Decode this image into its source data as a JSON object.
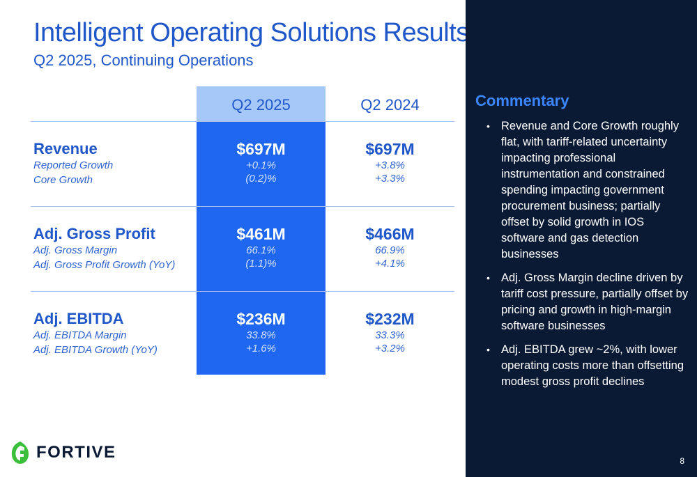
{
  "slide": {
    "title": "Intelligent Operating Solutions Results",
    "subtitle": "Q2 2025, Continuing Operations",
    "page_number": "8"
  },
  "table": {
    "columns": [
      "Q2 2025",
      "Q2 2024"
    ],
    "rows": [
      {
        "label": "Revenue",
        "sublabels": [
          "Reported Growth",
          "Core Growth"
        ],
        "q2_2025": {
          "value": "$697M",
          "subs": [
            "+0.1%",
            "(0.2)%"
          ]
        },
        "q2_2024": {
          "value": "$697M",
          "subs": [
            "+3.8%",
            "+3.3%"
          ]
        }
      },
      {
        "label": "Adj. Gross Profit",
        "sublabels": [
          "Adj. Gross Margin",
          "Adj. Gross Profit Growth (YoY)"
        ],
        "q2_2025": {
          "value": "$461M",
          "subs": [
            "66.1%",
            "(1.1)%"
          ]
        },
        "q2_2024": {
          "value": "$466M",
          "subs": [
            "66.9%",
            "+4.1%"
          ]
        }
      },
      {
        "label": "Adj. EBITDA",
        "sublabels": [
          "Adj. EBITDA Margin",
          "Adj. EBITDA Growth (YoY)"
        ],
        "q2_2025": {
          "value": "$236M",
          "subs": [
            "33.8%",
            "+1.6%"
          ]
        },
        "q2_2024": {
          "value": "$232M",
          "subs": [
            "33.3%",
            "+3.2%"
          ]
        }
      }
    ]
  },
  "commentary": {
    "title": "Commentary",
    "bullets": [
      "Revenue and Core Growth roughly flat, with tariff-related uncertainty impacting professional instrumentation and constrained spending impacting government procurement business; partially offset by solid growth in IOS software and gas detection businesses",
      "Adj. Gross Margin decline driven by tariff cost pressure, partially offset by pricing and growth in high-margin software businesses",
      "Adj. EBITDA grew ~2%, with lower operating costs more than offsetting modest gross profit declines"
    ]
  },
  "logo": {
    "text": "FORTIVE",
    "icon": "fortive-leaf-icon",
    "color": "#3bbf3b"
  },
  "colors": {
    "accent": "#1f66f0",
    "header_highlight": "#a6c8f8",
    "dark_panel": "#0b1a34",
    "text_blue": "#1f57c9"
  }
}
